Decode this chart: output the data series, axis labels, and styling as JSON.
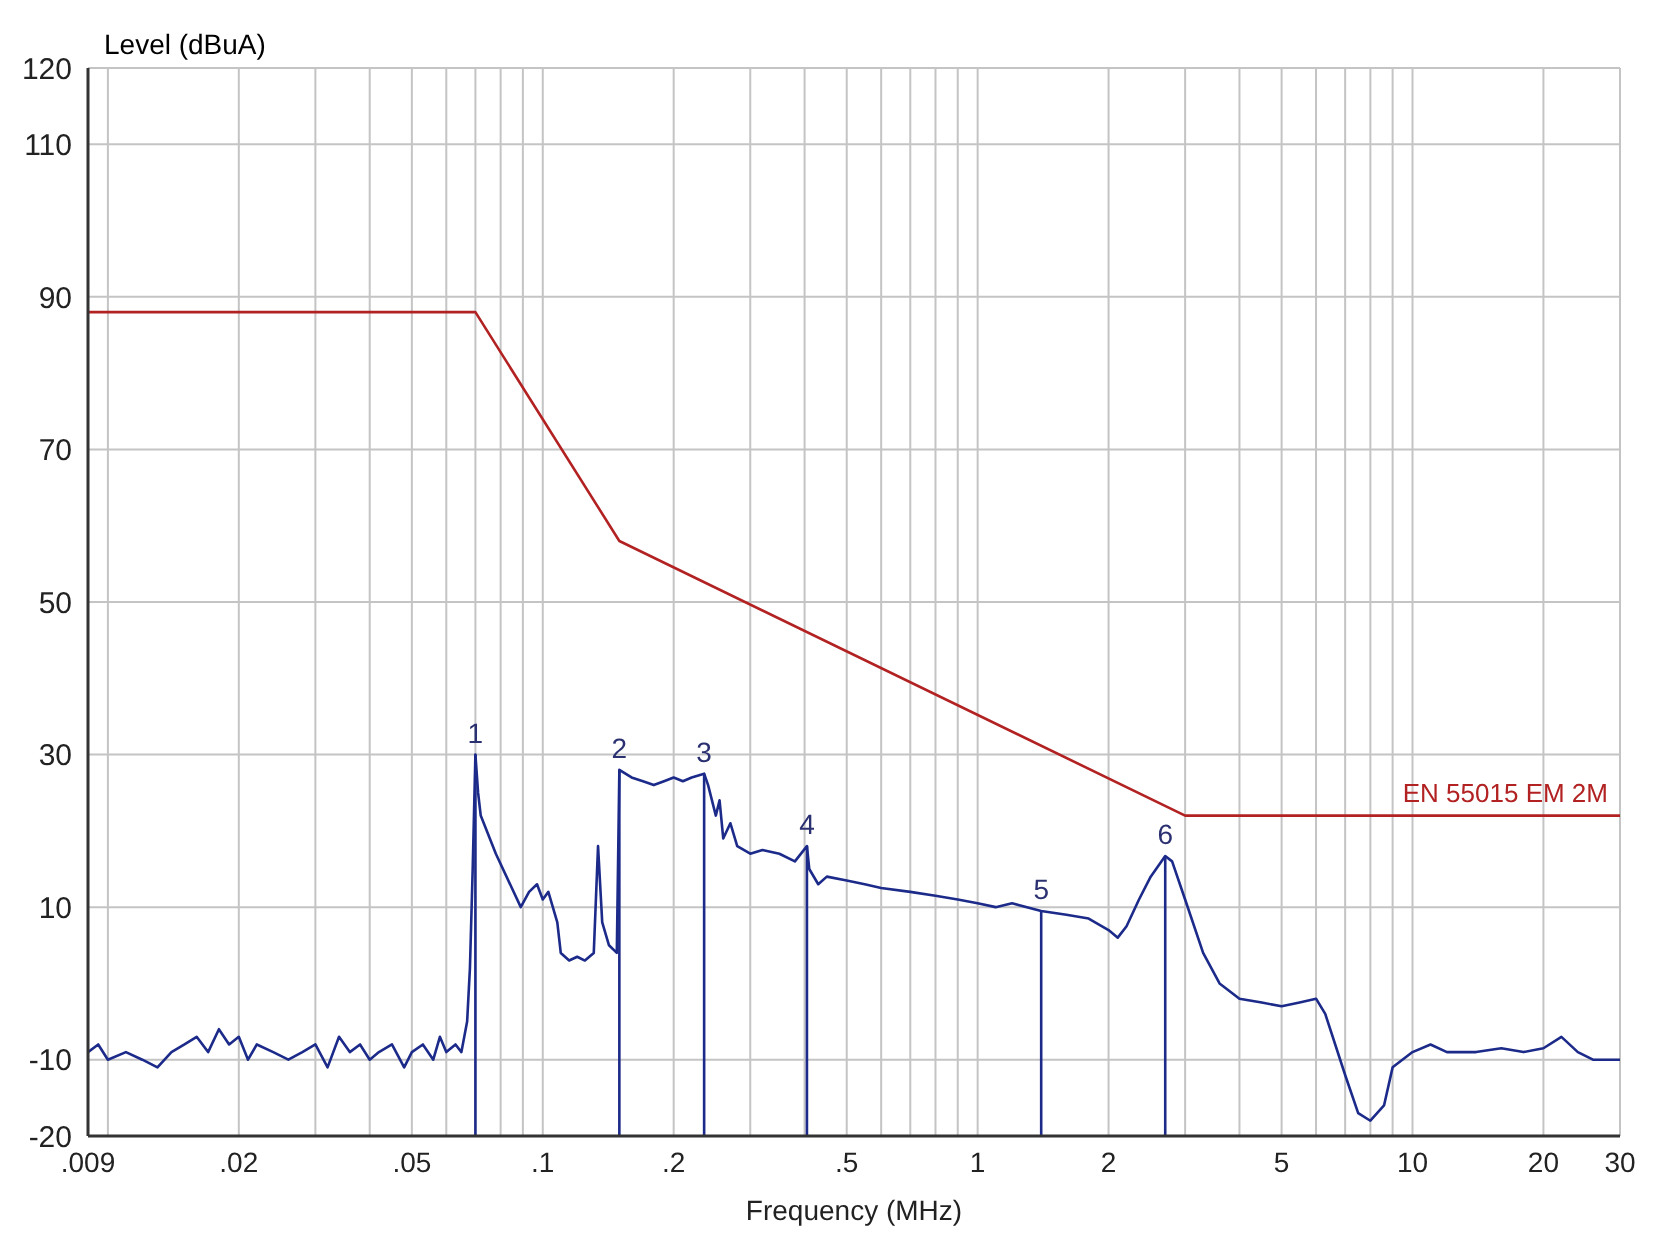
{
  "chart_data": {
    "type": "line",
    "xlabel": "Frequency (MHz)",
    "ylabel": "Level (dBuA)",
    "log": "x",
    "grid": true,
    "marker": "none",
    "xlim": [
      0.009,
      30
    ],
    "xticks": [
      {
        "value": 0.009,
        "label": ".009"
      },
      {
        "value": 0.01,
        "label": null
      },
      {
        "value": 0.02,
        "label": ".02"
      },
      {
        "value": 0.03,
        "label": null
      },
      {
        "value": 0.04,
        "label": null
      },
      {
        "value": 0.05,
        "label": ".05"
      },
      {
        "value": 0.06,
        "label": null
      },
      {
        "value": 0.07,
        "label": null
      },
      {
        "value": 0.08,
        "label": null
      },
      {
        "value": 0.09,
        "label": null
      },
      {
        "value": 0.1,
        "label": ".1"
      },
      {
        "value": 0.2,
        "label": ".2"
      },
      {
        "value": 0.3,
        "label": null
      },
      {
        "value": 0.4,
        "label": null
      },
      {
        "value": 0.5,
        "label": ".5"
      },
      {
        "value": 0.6,
        "label": null
      },
      {
        "value": 0.7,
        "label": null
      },
      {
        "value": 0.8,
        "label": null
      },
      {
        "value": 0.9,
        "label": null
      },
      1,
      2,
      {
        "value": 3,
        "label": null
      },
      {
        "value": 4,
        "label": null
      },
      5,
      {
        "value": 6,
        "label": null
      },
      {
        "value": 7,
        "label": null
      },
      {
        "value": 8,
        "label": null
      },
      {
        "value": 9,
        "label": null
      },
      10,
      20,
      30
    ],
    "ylim": [
      -20,
      120
    ],
    "yticks": [
      -20,
      -10,
      10,
      30,
      50,
      70,
      90,
      110,
      120
    ],
    "series": [
      {
        "color": "#1c2a8a",
        "x": [
          0.009,
          0.0095,
          0.01,
          0.011,
          0.012,
          0.013,
          0.014,
          0.015,
          0.016,
          0.017,
          0.018,
          0.019,
          0.02,
          0.021,
          0.022,
          0.024,
          0.026,
          0.028,
          0.03,
          0.032,
          0.034,
          0.036,
          0.038,
          0.04,
          0.042,
          0.045,
          0.048,
          0.05,
          0.053,
          0.056,
          0.058,
          0.06,
          0.063,
          0.065,
          0.067,
          0.068,
          0.069,
          0.07,
          0.071,
          0.072,
          0.078,
          0.089,
          0.093,
          0.097,
          0.1,
          0.103,
          0.108,
          0.11,
          0.115,
          0.12,
          0.125,
          0.131,
          0.134,
          0.137,
          0.142,
          0.148,
          0.15,
          0.16,
          0.17,
          0.18,
          0.19,
          0.2,
          0.21,
          0.22,
          0.235,
          0.24,
          0.25,
          0.255,
          0.26,
          0.27,
          0.28,
          0.3,
          0.32,
          0.35,
          0.38,
          0.405,
          0.41,
          0.43,
          0.45,
          0.5,
          0.55,
          0.6,
          0.7,
          0.8,
          0.9,
          1,
          1.1,
          1.2,
          1.4,
          1.6,
          1.8,
          2,
          2.1,
          2.2,
          2.35,
          2.5,
          2.7,
          2.8,
          3,
          3.3,
          3.6,
          4,
          4.5,
          5,
          5.5,
          6,
          6.3,
          7,
          7.5,
          8,
          8.6,
          9,
          10,
          11,
          12,
          14,
          16,
          18,
          20,
          22,
          24,
          26,
          30
        ],
        "values": [
          -9,
          -8,
          -10,
          -9,
          -10,
          -11,
          -9,
          -8,
          -7,
          -9,
          -6,
          -8,
          -7,
          -10,
          -8,
          -9,
          -10,
          -9,
          -8,
          -11,
          -7,
          -9,
          -8,
          -10,
          -9,
          -8,
          -11,
          -9,
          -8,
          -10,
          -7,
          -9,
          -8,
          -9,
          -5,
          2,
          15,
          30,
          25,
          22,
          17,
          10,
          12,
          13,
          11,
          12,
          8,
          4,
          3,
          3.5,
          3,
          4,
          18,
          8,
          5,
          4,
          28,
          27,
          26.5,
          26,
          26.5,
          27,
          26.5,
          27,
          27.5,
          26,
          22,
          24,
          19,
          21,
          18,
          17,
          17.5,
          17,
          16,
          18,
          15,
          13,
          14,
          13.5,
          13,
          12.5,
          12,
          11.5,
          11,
          10.5,
          10,
          10.5,
          9.5,
          9,
          8.5,
          7,
          6,
          7.5,
          11,
          14,
          16.7,
          16,
          11,
          4,
          0,
          -2,
          -2.5,
          -3,
          -2.5,
          -2,
          -4,
          -12,
          -17,
          -18,
          -16,
          -11,
          -9,
          -8,
          -9,
          -9,
          -8.5,
          -9,
          -8.5,
          -7,
          -9,
          -10,
          -10
        ]
      },
      {
        "name": "EN 55015 EM 2M",
        "color": "#b22222",
        "x": [
          0.009,
          0.07,
          0.15,
          3,
          30
        ],
        "values": [
          88,
          88,
          58,
          22,
          22
        ]
      }
    ],
    "annotations": [
      {
        "text": "1",
        "x": 0.07,
        "y": 30
      },
      {
        "text": "2",
        "x": 0.15,
        "y": 28
      },
      {
        "text": "3",
        "x": 0.235,
        "y": 27.5
      },
      {
        "text": "4",
        "x": 0.405,
        "y": 18
      },
      {
        "text": "5",
        "x": 1.4,
        "y": 9.5
      },
      {
        "text": "6",
        "x": 2.7,
        "y": 16.7
      }
    ]
  }
}
